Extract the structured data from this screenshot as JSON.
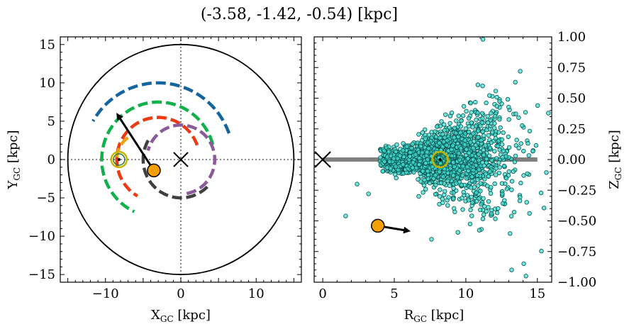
{
  "title": "(-3.58, -1.42, -0.54) [kpc]",
  "chart_data": [
    {
      "type": "scatter",
      "panel": "left",
      "xlabel": "X",
      "xlabel_sub": "GC",
      "xlabel_unit": " [kpc]",
      "ylabel": "Y",
      "ylabel_sub": "GC",
      "ylabel_unit": " [kpc]",
      "xlim": [
        -16,
        16
      ],
      "ylim": [
        -16,
        16
      ],
      "xticks": [
        -10,
        -5,
        0,
        5,
        10
      ],
      "xtick_labels": [
        "−10",
        "0",
        "10"
      ],
      "xtick_label_values": [
        -10,
        0,
        10
      ],
      "yticks": [
        -15,
        -10,
        -5,
        0,
        5,
        10,
        15
      ],
      "ytick_labels": [
        "−15",
        "−10",
        "−5",
        "0",
        "5",
        "10",
        "15"
      ],
      "disk_radius": 15,
      "galactic_center": [
        0,
        0
      ],
      "sun": [
        -8.2,
        0
      ],
      "object": [
        -3.58,
        -1.42
      ],
      "velocity_arrow": {
        "from": [
          -3.58,
          -1.42
        ],
        "to": [
          -8.3,
          5.7
        ]
      },
      "arcs": [
        {
          "color": "#1464a0",
          "r": 10,
          "start_deg": 20,
          "end_deg": 150,
          "cx": -3
        },
        {
          "color": "#10b04a",
          "r": 7.5,
          "start_deg": 15,
          "end_deg": 245,
          "cx": -3
        },
        {
          "color": "#ee3a12",
          "r": 5.5,
          "start_deg": 20,
          "end_deg": 240,
          "cx": -3
        },
        {
          "color": "#8a5a9a",
          "r": 4.5,
          "start_deg": -80,
          "end_deg": 165,
          "cx": 0
        },
        {
          "color": "#404040",
          "r": 5,
          "start_deg": 150,
          "end_deg": 320,
          "cx": 0
        },
        {
          "color": "#f0a010",
          "r": 3.5,
          "start_deg": 125,
          "end_deg": 175,
          "cx": -5
        }
      ]
    },
    {
      "type": "scatter",
      "panel": "right",
      "xlabel": "R",
      "xlabel_sub": "GC",
      "xlabel_unit": " [kpc]",
      "ylabel": "Z",
      "ylabel_sub": "GC",
      "ylabel_unit": " [kpc]",
      "xlim": [
        -0.6,
        16
      ],
      "ylim": [
        -1.0,
        1.0
      ],
      "xticks": [
        0,
        5,
        10,
        15
      ],
      "xtick_labels": [
        "0",
        "5",
        "10",
        "15"
      ],
      "yticks": [
        -1.0,
        -0.75,
        -0.5,
        -0.25,
        0.0,
        0.25,
        0.5,
        0.75,
        1.0
      ],
      "ytick_labels": [
        "−1.00",
        "−0.75",
        "−0.50",
        "−0.25",
        "0.00",
        "0.25",
        "0.50",
        "0.75",
        "1.00"
      ],
      "disk_line": {
        "x": [
          0,
          15
        ],
        "z": 0
      },
      "galactic_center": [
        0,
        0
      ],
      "sun": [
        8.2,
        0
      ],
      "object": [
        3.85,
        -0.54
      ],
      "velocity_arrow": {
        "from": [
          3.85,
          -0.54
        ],
        "to": [
          5.9,
          -0.58
        ]
      },
      "point_color": "#40e0d0",
      "n_points": 1800
    }
  ],
  "colors": {
    "frame": "#000000",
    "object": "#f5a000",
    "disk_line": "#808080",
    "sun_ring": "#c8b400",
    "sun_ring_inner": "#2f7a2f"
  }
}
